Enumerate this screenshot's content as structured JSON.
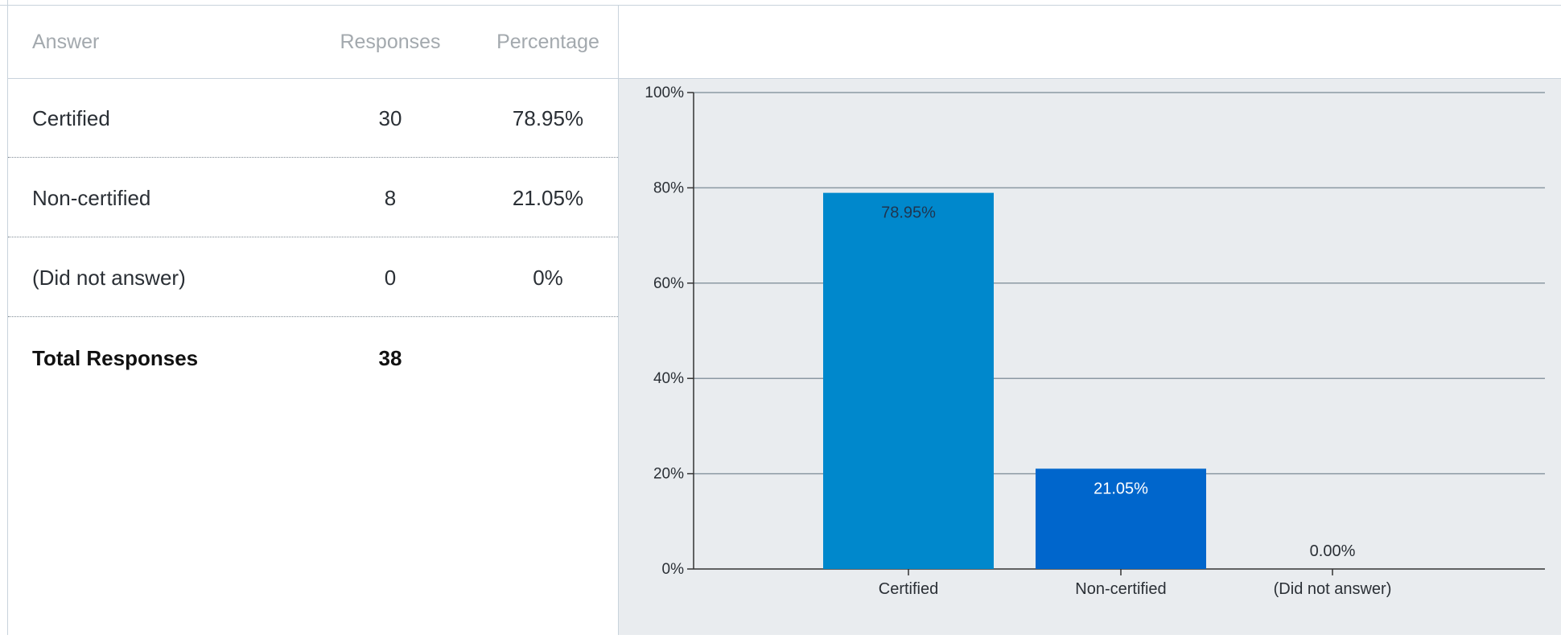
{
  "table": {
    "headers": {
      "answer": "Answer",
      "responses": "Responses",
      "percentage": "Percentage"
    },
    "rows": [
      {
        "answer": "Certified",
        "responses": "30",
        "percentage": "78.95%"
      },
      {
        "answer": "Non-certified",
        "responses": "8",
        "percentage": "21.05%"
      },
      {
        "answer": "(Did not answer)",
        "responses": "0",
        "percentage": "0%"
      }
    ],
    "total": {
      "label": "Total Responses",
      "responses": "38"
    }
  },
  "chart_data": {
    "type": "bar",
    "categories": [
      "Certified",
      "Non-certified",
      "(Did not answer)"
    ],
    "values": [
      78.95,
      21.05,
      0.0
    ],
    "data_labels": [
      "78.95%",
      "21.05%",
      "0.00%"
    ],
    "y_ticks": [
      "0%",
      "20%",
      "40%",
      "60%",
      "80%",
      "100%"
    ],
    "ylim": [
      0,
      100
    ],
    "grid": true,
    "colors": [
      "#0088cc",
      "#0066cc",
      "#0066cc"
    ],
    "label_colors": [
      "#1f3550",
      "#ffffff",
      "#2a2f35"
    ],
    "title": "",
    "xlabel": "",
    "ylabel": ""
  }
}
